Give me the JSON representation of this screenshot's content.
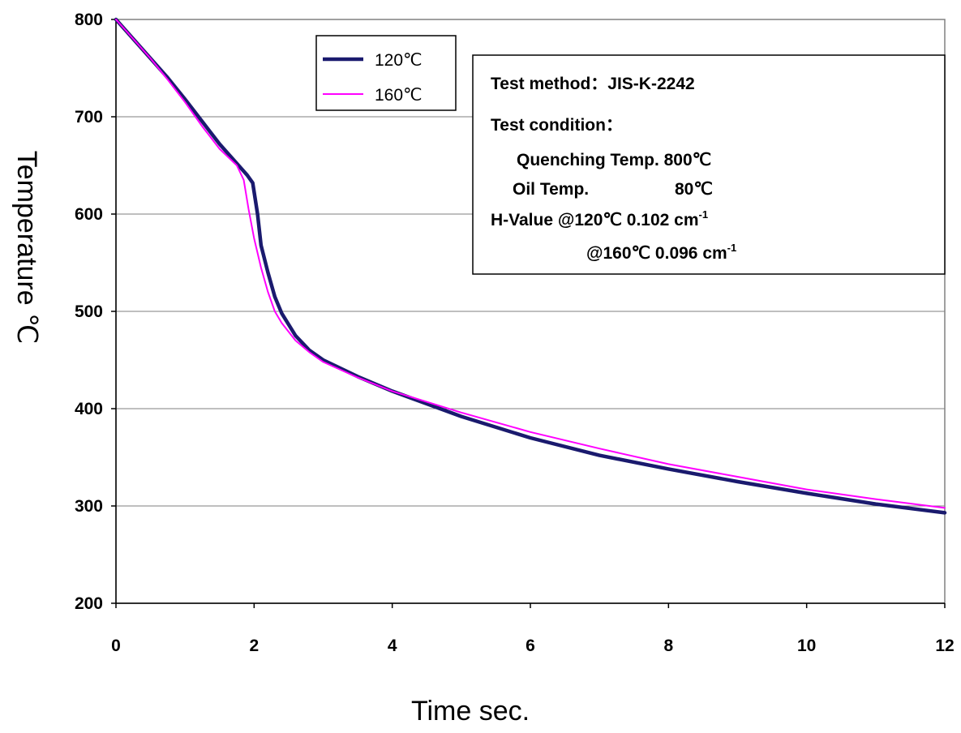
{
  "chart_data": {
    "type": "line",
    "xlabel": "Time sec.",
    "ylabel": "Temperature ℃",
    "xlim": [
      0,
      12
    ],
    "ylim": [
      200,
      800
    ],
    "x_ticks": [
      "0",
      "2",
      "4",
      "6",
      "8",
      "10",
      "12"
    ],
    "y_ticks": [
      "800",
      "700",
      "600",
      "500",
      "400",
      "300",
      "200"
    ],
    "grid": "horizontal",
    "legend_position": "top-left",
    "series": [
      {
        "name": "120℃",
        "color": "#1a1a6e",
        "x": [
          0,
          0.25,
          0.5,
          0.75,
          1.0,
          1.25,
          1.5,
          1.75,
          1.9,
          1.98,
          2.05,
          2.1,
          2.2,
          2.3,
          2.4,
          2.6,
          2.8,
          3.0,
          3.5,
          4.0,
          4.5,
          5.0,
          6.0,
          7.0,
          8.0,
          9.0,
          10.0,
          11.0,
          12.0
        ],
        "y": [
          800,
          780,
          760,
          740,
          718,
          695,
          672,
          652,
          640,
          632,
          600,
          568,
          540,
          515,
          498,
          475,
          460,
          450,
          433,
          418,
          405,
          392,
          370,
          352,
          338,
          325,
          313,
          302,
          293
        ]
      },
      {
        "name": "160℃",
        "color": "#ff00ff",
        "x": [
          0,
          0.25,
          0.5,
          0.75,
          1.0,
          1.25,
          1.5,
          1.75,
          1.85,
          1.92,
          2.0,
          2.1,
          2.2,
          2.3,
          2.4,
          2.6,
          2.8,
          3.0,
          3.5,
          4.0,
          4.5,
          5.0,
          6.0,
          7.0,
          8.0,
          9.0,
          10.0,
          11.0,
          12.0
        ],
        "y": [
          800,
          780,
          760,
          738,
          715,
          690,
          667,
          650,
          635,
          605,
          575,
          545,
          520,
          500,
          488,
          470,
          458,
          448,
          432,
          418,
          407,
          396,
          376,
          359,
          343,
          330,
          317,
          307,
          298
        ]
      }
    ],
    "annotation": {
      "line1": "Test method：JIS-K-2242",
      "line2": "Test condition：",
      "line3": "Quenching Temp. 800℃",
      "line4_label": "Oil Temp.",
      "line4_value": "80℃",
      "line5": "H-Value  @120℃ 0.102 cm",
      "line5_sup": "-1",
      "line6": "@160℃ 0.096 cm",
      "line6_sup": "-1"
    }
  }
}
